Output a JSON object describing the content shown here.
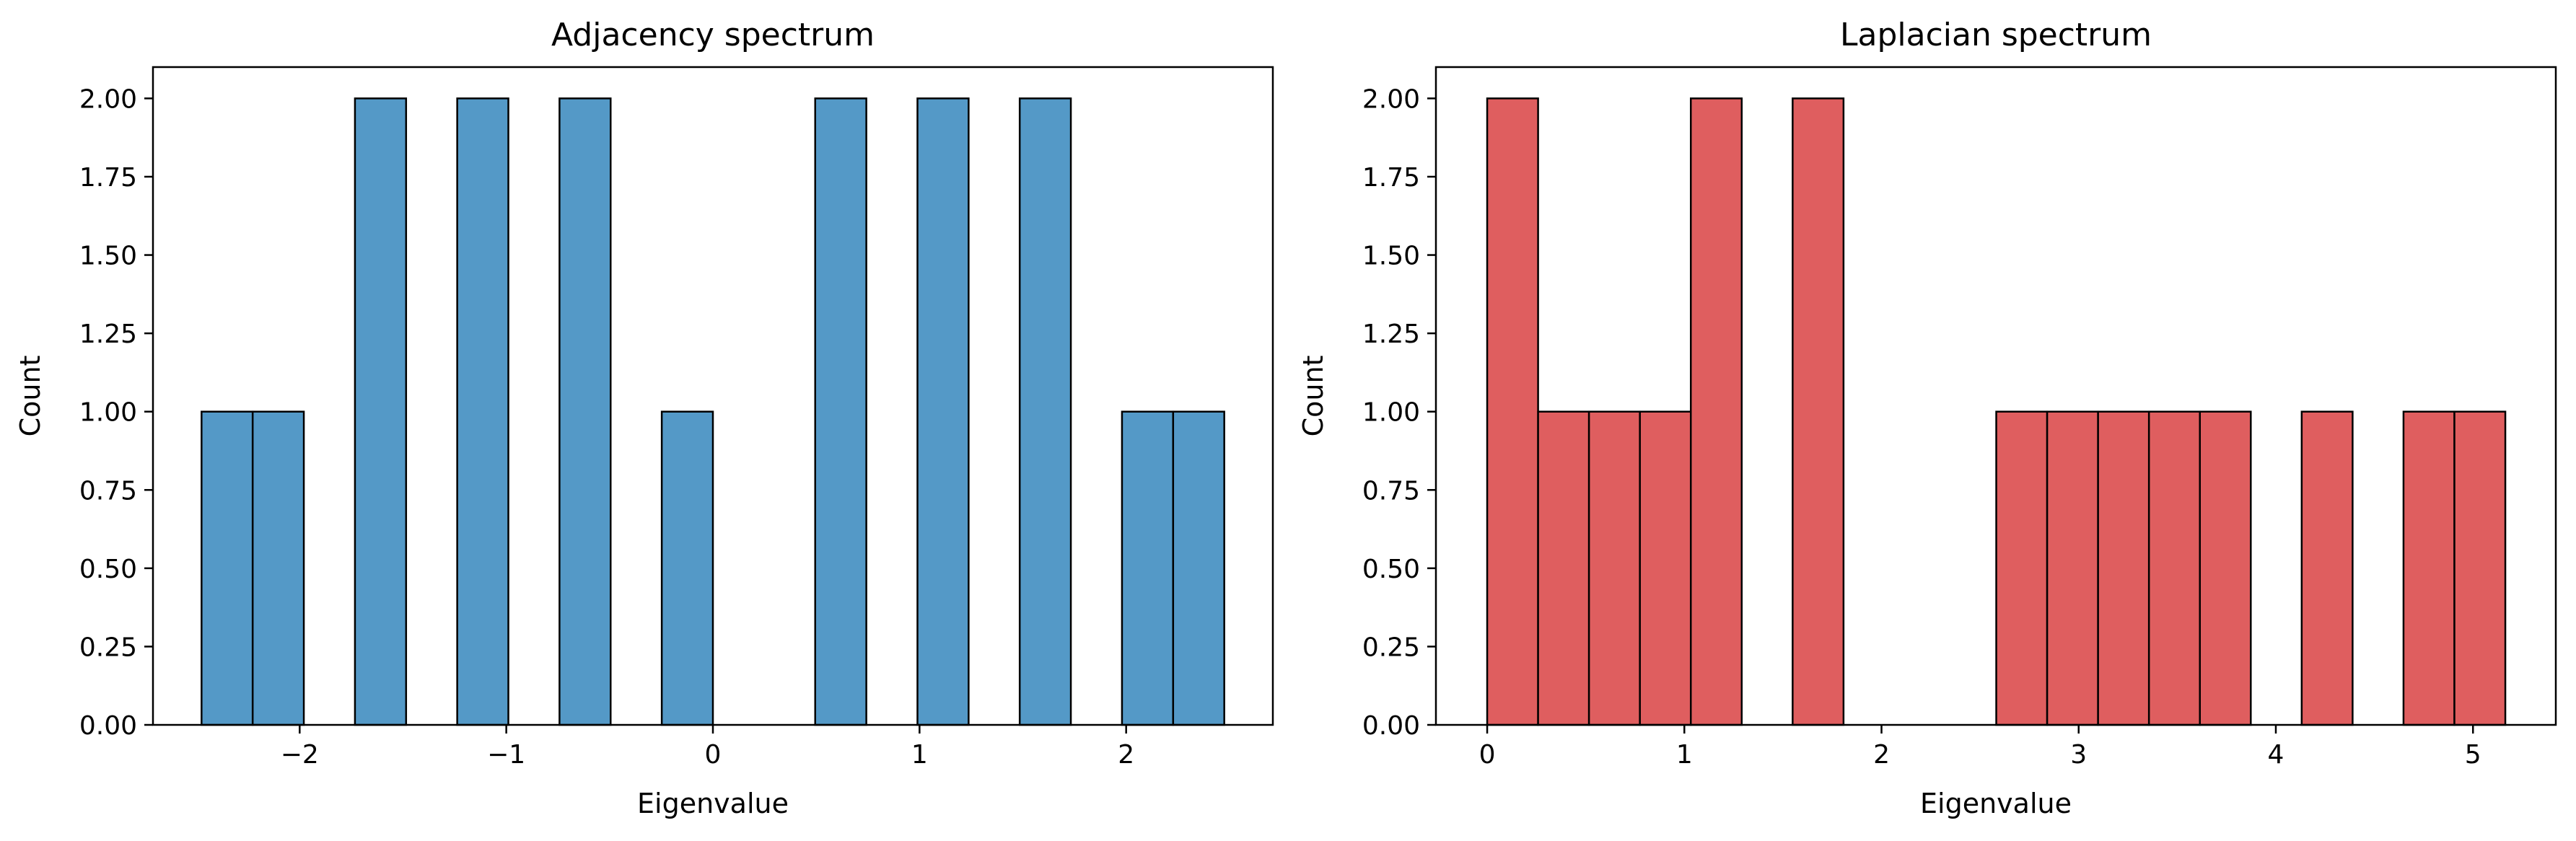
{
  "chart_data": [
    {
      "type": "bar",
      "title": "Adjacency spectrum",
      "xlabel": "Eigenvalue",
      "ylabel": "Count",
      "xlim": [
        -2.71,
        2.71
      ],
      "ylim": [
        0,
        2.1
      ],
      "xticks": [
        -2,
        -1,
        0,
        1,
        2
      ],
      "xtick_labels": [
        "−2",
        "−1",
        "0",
        "1",
        "2"
      ],
      "yticks": [
        0,
        0.25,
        0.5,
        0.75,
        1.0,
        1.25,
        1.5,
        1.75,
        2.0
      ],
      "ytick_labels": [
        "0.00",
        "0.25",
        "0.50",
        "0.75",
        "1.00",
        "1.25",
        "1.50",
        "1.75",
        "2.00"
      ],
      "bin_edges": [
        -2.4749,
        -2.2274,
        -1.9799,
        -1.7324,
        -1.4849,
        -1.2375,
        -0.99,
        -0.7425,
        -0.495,
        -0.2475,
        0.0,
        0.2475,
        0.495,
        0.7425,
        0.99,
        1.2375,
        1.4849,
        1.7324,
        1.9799,
        2.2274,
        2.4749
      ],
      "values": [
        1,
        1,
        0,
        2,
        0,
        2,
        0,
        2,
        0,
        1,
        0,
        0,
        2,
        0,
        2,
        0,
        2,
        0,
        1,
        1
      ],
      "color": "#5499c7",
      "edge_color": "#000000",
      "grid": false
    },
    {
      "type": "bar",
      "title": "Laplacian spectrum",
      "xlabel": "Eigenvalue",
      "ylabel": "Count",
      "xlim": [
        -0.26,
        5.42
      ],
      "ylim": [
        0,
        2.1
      ],
      "xticks": [
        0,
        1,
        2,
        3,
        4,
        5
      ],
      "xtick_labels": [
        "0",
        "1",
        "2",
        "3",
        "4",
        "5"
      ],
      "yticks": [
        0,
        0.25,
        0.5,
        0.75,
        1.0,
        1.25,
        1.5,
        1.75,
        2.0
      ],
      "ytick_labels": [
        "0.00",
        "0.25",
        "0.50",
        "0.75",
        "1.00",
        "1.25",
        "1.50",
        "1.75",
        "2.00"
      ],
      "bin_edges": [
        0.0,
        0.2582,
        0.5164,
        0.7746,
        1.0328,
        1.291,
        1.5492,
        1.8074,
        2.0656,
        2.3238,
        2.582,
        2.8402,
        3.0984,
        3.3566,
        3.6148,
        3.873,
        4.1312,
        4.3894,
        4.6476,
        4.9058,
        5.164
      ],
      "values": [
        2,
        1,
        1,
        1,
        2,
        0,
        2,
        0,
        0,
        0,
        1,
        1,
        1,
        1,
        1,
        0,
        1,
        0,
        1,
        1
      ],
      "color": "#df5e5f",
      "edge_color": "#000000",
      "grid": false
    }
  ]
}
